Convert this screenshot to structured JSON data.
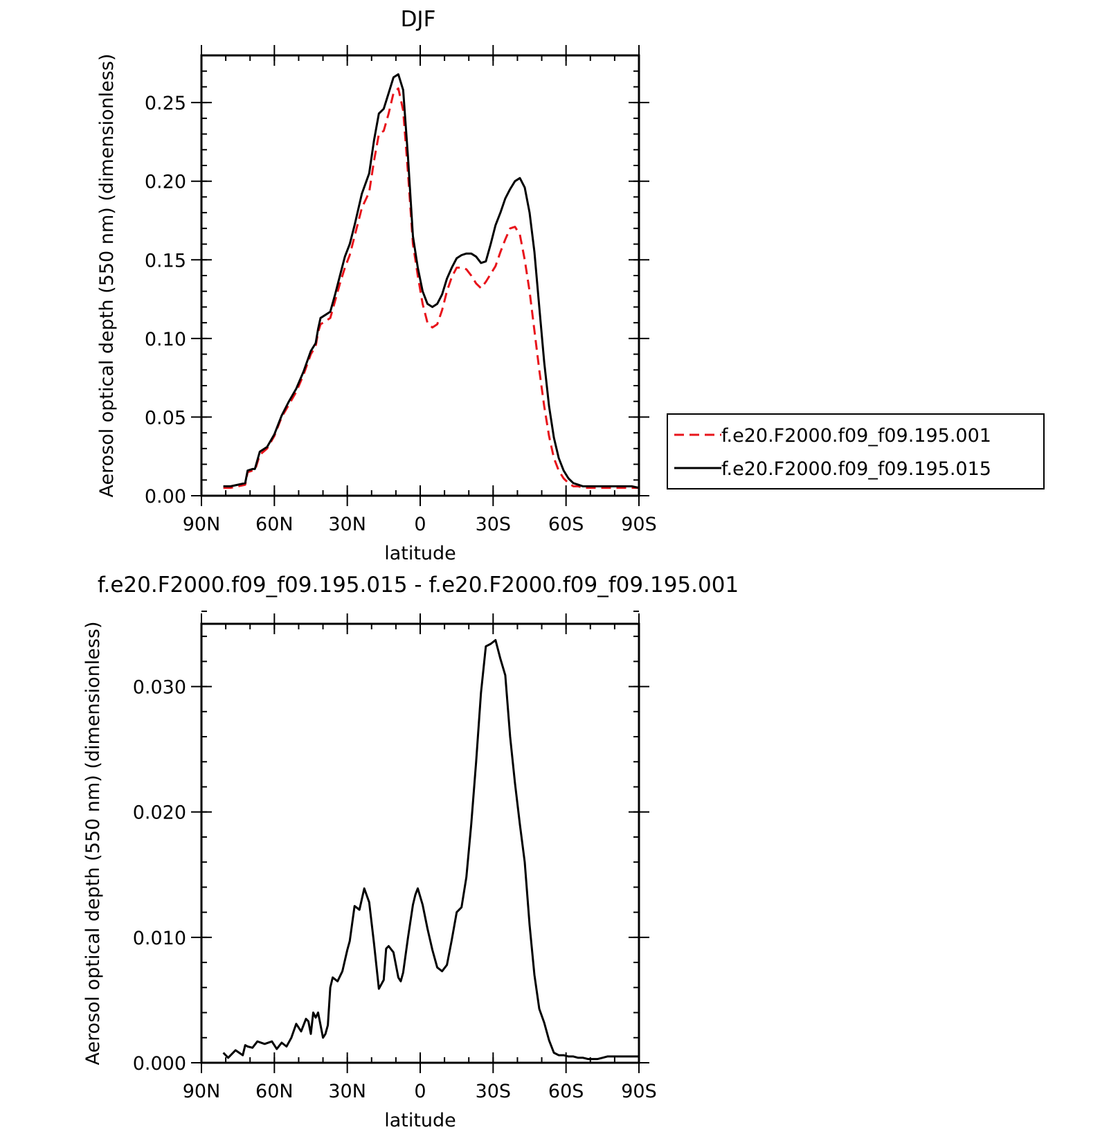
{
  "chart_data": [
    {
      "type": "line",
      "title": "DJF",
      "xlabel": "latitude",
      "ylabel": "Aerosol optical depth (550 nm) (dimensionless)",
      "xlim": [
        90,
        -90
      ],
      "ylim": [
        0,
        0.28
      ],
      "x_ticks": [
        90,
        60,
        30,
        0,
        -30,
        -60,
        -90
      ],
      "x_tick_labels": [
        "90N",
        "60N",
        "30N",
        "0",
        "30S",
        "60S",
        "90S"
      ],
      "y_ticks": [
        0,
        0.05,
        0.1,
        0.15,
        0.2,
        0.25
      ],
      "y_tick_labels": [
        "0.00",
        "0.05",
        "0.10",
        "0.15",
        "0.20",
        "0.25"
      ],
      "legend_position": "right",
      "series": [
        {
          "name": "f.e20.F2000.f09_f09.195.001",
          "color": "#e8141b",
          "dash": "dashed",
          "x": [
            81,
            78,
            75,
            72,
            71,
            69,
            68,
            66,
            63,
            60,
            57,
            54,
            51,
            48,
            45,
            43,
            42,
            41,
            39,
            37,
            35,
            33,
            31,
            29,
            27,
            24,
            21,
            19,
            17,
            15,
            13,
            11,
            9,
            7,
            5,
            3,
            1,
            -1,
            -3,
            -5,
            -7,
            -9,
            -11,
            -13,
            -15,
            -17,
            -19,
            -21,
            -23,
            -25,
            -27,
            -29,
            -31,
            -33,
            -35,
            -37,
            -39,
            -41,
            -43,
            -45,
            -47,
            -49,
            -51,
            -53,
            -55,
            -57,
            -59,
            -61,
            -63,
            -65,
            -67,
            -69,
            -71,
            -73,
            -75,
            -78,
            -81,
            -84,
            -87,
            -90
          ],
          "y": [
            0.005,
            0.005,
            0.006,
            0.007,
            0.015,
            0.016,
            0.016,
            0.026,
            0.03,
            0.038,
            0.05,
            0.058,
            0.066,
            0.077,
            0.09,
            0.095,
            0.104,
            0.109,
            0.111,
            0.113,
            0.124,
            0.135,
            0.145,
            0.153,
            0.165,
            0.183,
            0.193,
            0.213,
            0.23,
            0.232,
            0.243,
            0.256,
            0.259,
            0.245,
            0.205,
            0.16,
            0.14,
            0.122,
            0.11,
            0.107,
            0.109,
            0.118,
            0.13,
            0.139,
            0.145,
            0.145,
            0.144,
            0.14,
            0.135,
            0.132,
            0.136,
            0.141,
            0.146,
            0.155,
            0.163,
            0.17,
            0.171,
            0.166,
            0.15,
            0.13,
            0.105,
            0.08,
            0.057,
            0.038,
            0.024,
            0.016,
            0.011,
            0.008,
            0.006,
            0.006,
            0.005,
            0.005,
            0.005,
            0.005,
            0.005,
            0.005,
            0.005,
            0.005,
            0.005,
            0.005
          ]
        },
        {
          "name": "f.e20.F2000.f09_f09.195.015",
          "color": "#000000",
          "dash": "solid",
          "x": [
            81,
            78,
            75,
            72,
            71,
            69,
            68,
            66,
            63,
            60,
            57,
            54,
            51,
            48,
            45,
            43,
            42,
            41,
            39,
            37,
            35,
            33,
            31,
            29,
            27,
            24,
            21,
            19,
            17,
            15,
            13,
            11,
            9,
            7,
            5,
            3,
            1,
            -1,
            -3,
            -5,
            -7,
            -9,
            -11,
            -13,
            -15,
            -17,
            -19,
            -21,
            -23,
            -25,
            -27,
            -29,
            -31,
            -33,
            -35,
            -37,
            -39,
            -41,
            -43,
            -45,
            -47,
            -49,
            -51,
            -53,
            -55,
            -57,
            -59,
            -61,
            -63,
            -65,
            -67,
            -69,
            -71,
            -73,
            -75,
            -78,
            -81,
            -84,
            -87,
            -90
          ],
          "y": [
            0.006,
            0.006,
            0.007,
            0.008,
            0.016,
            0.017,
            0.017,
            0.028,
            0.031,
            0.039,
            0.051,
            0.06,
            0.068,
            0.079,
            0.092,
            0.097,
            0.106,
            0.113,
            0.115,
            0.117,
            0.128,
            0.14,
            0.152,
            0.16,
            0.172,
            0.192,
            0.205,
            0.226,
            0.243,
            0.246,
            0.256,
            0.266,
            0.268,
            0.258,
            0.215,
            0.165,
            0.145,
            0.13,
            0.122,
            0.12,
            0.122,
            0.128,
            0.138,
            0.145,
            0.151,
            0.153,
            0.154,
            0.154,
            0.152,
            0.148,
            0.149,
            0.16,
            0.172,
            0.18,
            0.189,
            0.195,
            0.2,
            0.202,
            0.196,
            0.18,
            0.155,
            0.12,
            0.085,
            0.057,
            0.037,
            0.024,
            0.016,
            0.011,
            0.008,
            0.007,
            0.006,
            0.006,
            0.006,
            0.006,
            0.006,
            0.006,
            0.006,
            0.006,
            0.006,
            0.005
          ]
        }
      ]
    },
    {
      "type": "line",
      "title": "f.e20.F2000.f09_f09.195.015 - f.e20.F2000.f09_f09.195.001",
      "xlabel": "latitude",
      "ylabel": "Aerosol optical depth (550 nm) (dimensionless)",
      "xlim": [
        90,
        -90
      ],
      "ylim": [
        0,
        0.035
      ],
      "x_ticks": [
        90,
        60,
        30,
        0,
        -30,
        -60,
        -90
      ],
      "x_tick_labels": [
        "90N",
        "60N",
        "30N",
        "0",
        "30S",
        "60S",
        "90S"
      ],
      "y_ticks": [
        0,
        0.01,
        0.02,
        0.03
      ],
      "y_tick_labels": [
        "0.000",
        "0.010",
        "0.020",
        "0.030"
      ],
      "series": [
        {
          "color": "#000000",
          "dash": "solid",
          "x": [
            81,
            79,
            76,
            73,
            72,
            71,
            69,
            67,
            64,
            61,
            59,
            57,
            55,
            53,
            51,
            49,
            47,
            46,
            45,
            44,
            43,
            42,
            40,
            39,
            38,
            37,
            36,
            34,
            32,
            30,
            29,
            27,
            25,
            23,
            21,
            19,
            17,
            15,
            14,
            13,
            11,
            9,
            8,
            7,
            5,
            3,
            2,
            1,
            -1,
            -3,
            -5,
            -7,
            -9,
            -11,
            -13,
            -15,
            -17,
            -19,
            -21,
            -23,
            -25,
            -27,
            -29,
            -31,
            -33,
            -35,
            -37,
            -39,
            -41,
            -43,
            -45,
            -47,
            -49,
            -51,
            -53,
            -55,
            -57,
            -59,
            -61,
            -63,
            -65,
            -67,
            -69,
            -71,
            -73,
            -75,
            -77,
            -79,
            -81,
            -83,
            -85,
            -87,
            -90
          ],
          "y": [
            0.0008,
            0.0004,
            0.001,
            0.0006,
            0.0014,
            0.0013,
            0.0012,
            0.0017,
            0.0015,
            0.0017,
            0.0011,
            0.0016,
            0.0013,
            0.002,
            0.0031,
            0.0025,
            0.0035,
            0.0033,
            0.0023,
            0.004,
            0.0036,
            0.004,
            0.002,
            0.0023,
            0.003,
            0.006,
            0.0068,
            0.0065,
            0.0073,
            0.009,
            0.0097,
            0.0125,
            0.0122,
            0.0139,
            0.0128,
            0.0095,
            0.0059,
            0.0066,
            0.0091,
            0.0093,
            0.0088,
            0.0068,
            0.0065,
            0.0072,
            0.01,
            0.0126,
            0.0134,
            0.0139,
            0.0126,
            0.0107,
            0.009,
            0.0076,
            0.0073,
            0.0078,
            0.0098,
            0.012,
            0.0124,
            0.0148,
            0.019,
            0.024,
            0.0295,
            0.0332,
            0.0334,
            0.0337,
            0.0322,
            0.0309,
            0.026,
            0.0223,
            0.019,
            0.016,
            0.011,
            0.007,
            0.0043,
            0.0032,
            0.0018,
            0.0008,
            0.0006,
            0.0006,
            0.0005,
            0.0005,
            0.0004,
            0.0004,
            0.0003,
            0.0003,
            0.0003,
            0.0004,
            0.0005,
            0.0005,
            0.0005,
            0.0005,
            0.0005,
            0.0005,
            0.0005
          ]
        }
      ]
    }
  ]
}
